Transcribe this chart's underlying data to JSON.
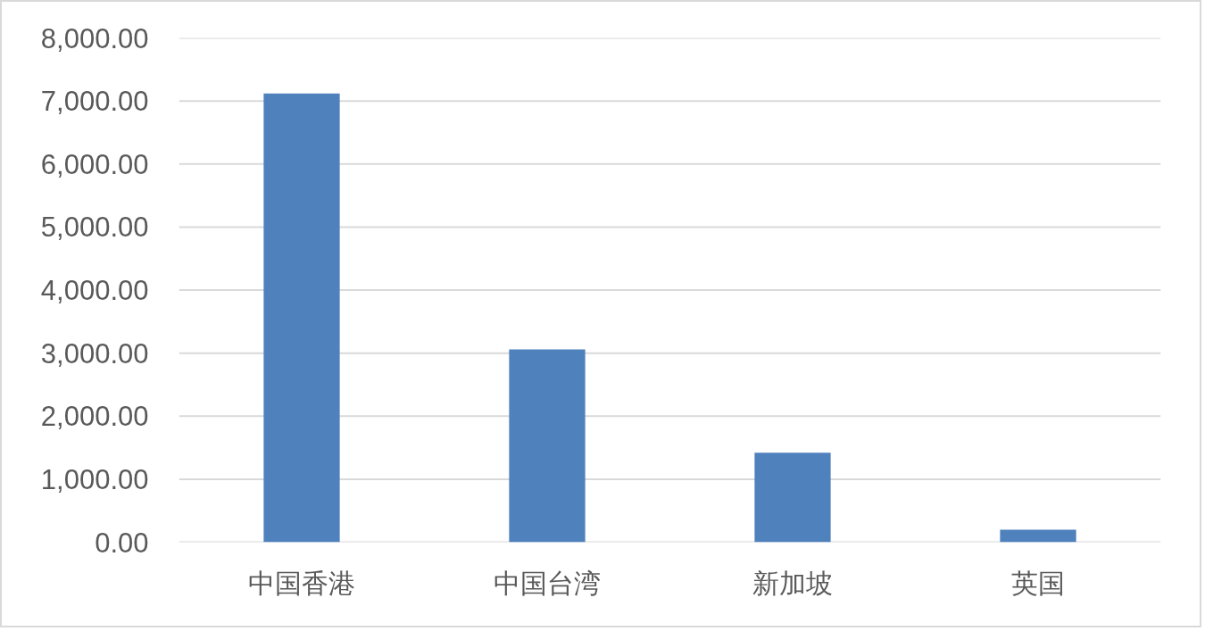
{
  "chart_data": {
    "type": "bar",
    "categories": [
      "中国香港",
      "中国台湾",
      "新加坡",
      "英国"
    ],
    "values": [
      7120,
      3060,
      1420,
      200
    ],
    "color": "#4f81bd",
    "ylim": [
      0,
      8000
    ],
    "yticks": [
      {
        "value": 0,
        "label": "0.00"
      },
      {
        "value": 1000,
        "label": "1,000.00"
      },
      {
        "value": 2000,
        "label": "2,000.00"
      },
      {
        "value": 3000,
        "label": "3,000.00"
      },
      {
        "value": 4000,
        "label": "4,000.00"
      },
      {
        "value": 5000,
        "label": "5,000.00"
      },
      {
        "value": 6000,
        "label": "6,000.00"
      },
      {
        "value": 7000,
        "label": "7,000.00"
      },
      {
        "value": 8000,
        "label": "8,000.00"
      }
    ],
    "grid": "y"
  }
}
